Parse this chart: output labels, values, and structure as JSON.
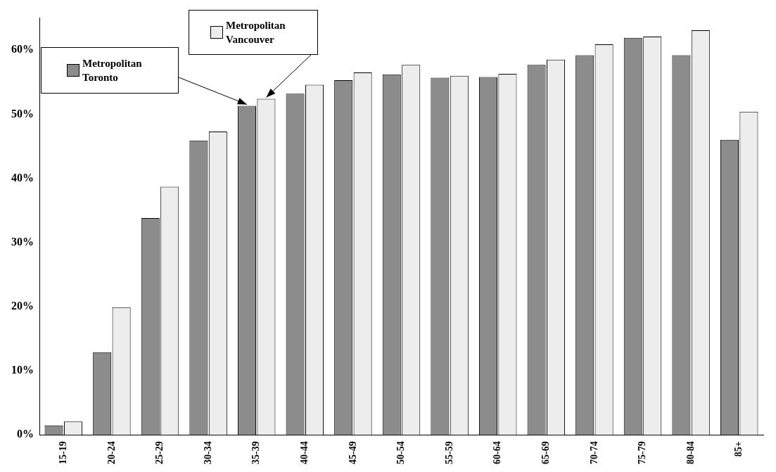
{
  "chart_data": {
    "type": "bar",
    "categories": [
      "15-19",
      "20-24",
      "25-29",
      "30-34",
      "35-39",
      "40-44",
      "45-49",
      "50-54",
      "55-59",
      "60-64",
      "65-69",
      "70-74",
      "75-79",
      "80-84",
      "85+"
    ],
    "series": [
      {
        "name": "Metropolitan Toronto",
        "color": "#8c8c8c",
        "values": [
          1.5,
          12.9,
          33.8,
          45.9,
          51.3,
          53.2,
          55.3,
          56.2,
          55.7,
          55.8,
          57.7,
          59.2,
          61.9,
          59.2,
          46.0
        ]
      },
      {
        "name": "Metropolitan Vancouver",
        "color": "#ededed",
        "values": [
          2.1,
          19.9,
          38.7,
          47.3,
          52.4,
          54.6,
          56.5,
          57.7,
          56.0,
          56.3,
          58.5,
          60.9,
          62.1,
          63.1,
          50.4
        ]
      }
    ],
    "ylim": [
      0,
      65
    ],
    "yticks": [
      {
        "value": 0,
        "label": "0%"
      },
      {
        "value": 10,
        "label": "10%"
      },
      {
        "value": 20,
        "label": "20%"
      },
      {
        "value": 30,
        "label": "30%"
      },
      {
        "value": 40,
        "label": "40%"
      },
      {
        "value": 50,
        "label": "50%"
      },
      {
        "value": 60,
        "label": "60%"
      }
    ],
    "grid": false,
    "legend": "top left"
  }
}
